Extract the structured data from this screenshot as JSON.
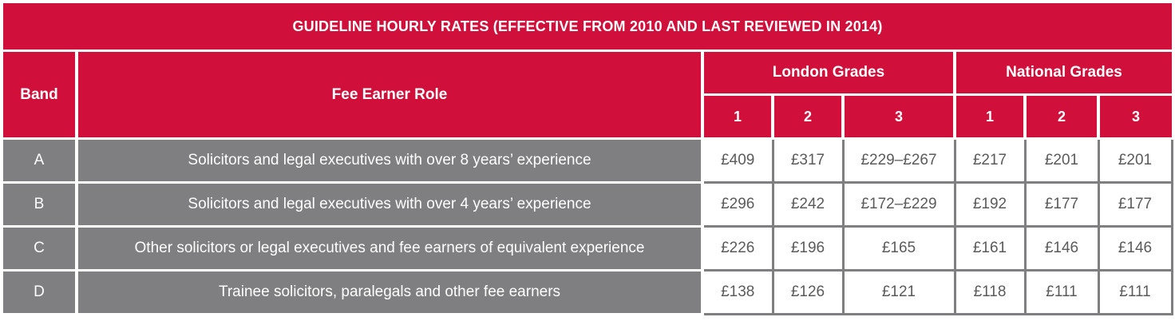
{
  "title": "GUIDELINE HOURLY RATES (EFFECTIVE FROM 2010 AND LAST REVIEWED IN 2014)",
  "headers": {
    "band": "Band",
    "role": "Fee Earner Role",
    "london": "London Grades",
    "national": "National Grades",
    "grades": [
      "1",
      "2",
      "3",
      "1",
      "2",
      "3"
    ]
  },
  "rows": [
    {
      "band": "A",
      "role": "Solicitors and legal executives with over 8 years’ experience",
      "rates": [
        "£409",
        "£317",
        "£229–£267",
        "£217",
        "£201",
        "£201"
      ]
    },
    {
      "band": "B",
      "role": "Solicitors and legal executives with over 4 years’ experience",
      "rates": [
        "£296",
        "£242",
        "£172–£229",
        "£192",
        "£177",
        "£177"
      ]
    },
    {
      "band": "C",
      "role": "Other solicitors or legal executives and fee earners of equivalent experience",
      "rates": [
        "£226",
        "£196",
        "£165",
        "£161",
        "£146",
        "£146"
      ]
    },
    {
      "band": "D",
      "role": "Trainee solicitors, paralegals and other fee earners",
      "rates": [
        "£138",
        "£126",
        "£121",
        "£118",
        "£111",
        "£111"
      ]
    }
  ],
  "colors": {
    "header": "#d0103a",
    "band_bg": "#7f7e80",
    "text_dark": "#5b5b5b"
  }
}
